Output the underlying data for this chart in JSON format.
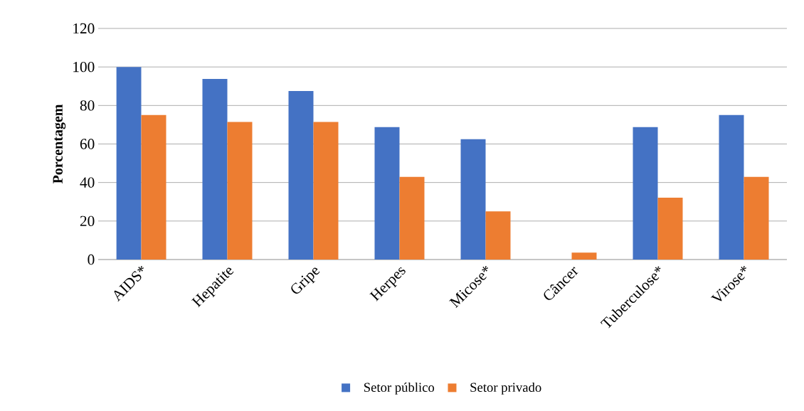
{
  "chart_data": {
    "type": "bar",
    "ylabel": "Porcentagem",
    "categories": [
      "AIDS*",
      "Hepatite",
      "Gripe",
      "Herpes",
      "Micose*",
      "Câncer",
      "Tuberculose*",
      "Virose*"
    ],
    "series": [
      {
        "name": "Setor público",
        "color": "#4472c4",
        "values": [
          100,
          93.8,
          87.5,
          68.8,
          62.5,
          0,
          68.8,
          75
        ]
      },
      {
        "name": "Setor privado",
        "color": "#ed7d31",
        "values": [
          75,
          71.4,
          71.4,
          42.9,
          25,
          3.6,
          32.1,
          42.9
        ]
      }
    ],
    "ylim": [
      0,
      120
    ],
    "yticks": [
      0,
      20,
      40,
      60,
      80,
      100,
      120
    ],
    "grid": "y",
    "legend": "bottom"
  }
}
